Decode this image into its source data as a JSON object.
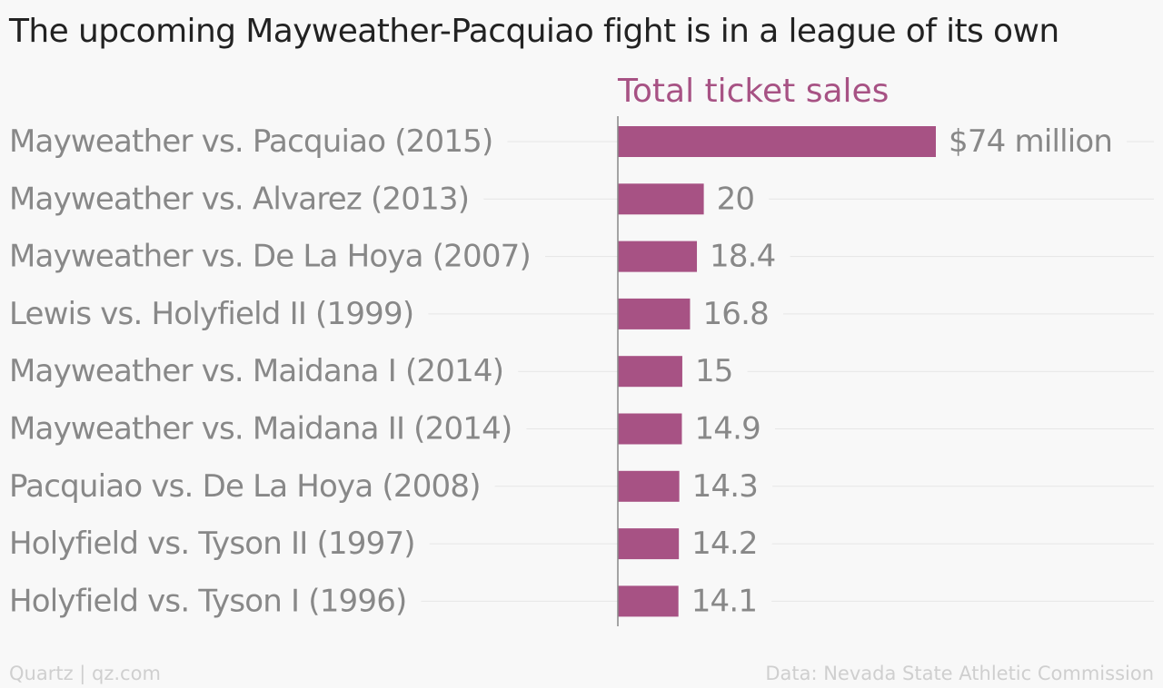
{
  "title": "The upcoming Mayweather-Pacquiao fight is in a league of its own",
  "colors": {
    "bar": "#a75284",
    "header": "#a75284",
    "category_text": "#888888",
    "value_text": "#888888",
    "gridline": "#e6e6e6",
    "axis": "#888888",
    "footer": "#cfcfcf"
  },
  "chart_data": {
    "type": "bar",
    "orientation": "horizontal",
    "column_header": "Total ticket sales",
    "categories": [
      "Mayweather vs. Pacquiao (2015)",
      "Mayweather vs. Alvarez (2013)",
      "Mayweather vs. De La Hoya (2007)",
      "Lewis vs. Holyfield II (1999)",
      "Mayweather vs. Maidana I (2014)",
      "Mayweather vs. Maidana II (2014)",
      "Pacquiao vs. De La Hoya (2008)",
      "Holyfield vs. Tyson II (1997)",
      "Holyfield vs. Tyson I (1996)"
    ],
    "values": [
      74,
      20,
      18.4,
      16.8,
      15,
      14.9,
      14.3,
      14.2,
      14.1
    ],
    "value_labels": [
      "$74 million",
      "20",
      "18.4",
      "16.8",
      "15",
      "14.9",
      "14.3",
      "14.2",
      "14.1"
    ],
    "unit": "million USD",
    "xlim": [
      0,
      74
    ],
    "grid": true,
    "legend": "none"
  },
  "footer": {
    "source_left": "Quartz | qz.com",
    "source_right": "Data: Nevada State Athletic Commission"
  }
}
